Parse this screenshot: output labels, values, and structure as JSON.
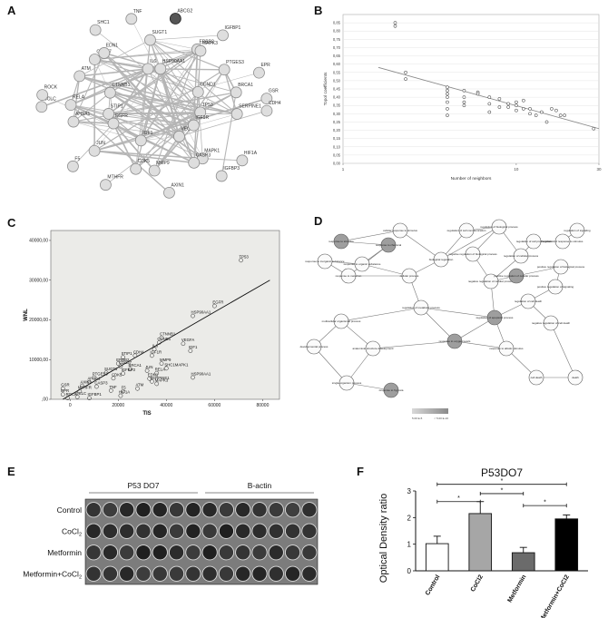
{
  "panels": {
    "a": {
      "letter": "A"
    },
    "b": {
      "letter": "B"
    },
    "c": {
      "letter": "C"
    },
    "d": {
      "letter": "D"
    },
    "e": {
      "letter": "E"
    },
    "f": {
      "letter": "F"
    }
  },
  "chart_data": [
    {
      "id": "B",
      "type": "scatter",
      "xscale": "log",
      "title": "",
      "xlabel": "Number of neighbors",
      "ylabel": "Topol coefficients",
      "xlim": [
        1,
        30
      ],
      "ylim": [
        0.0,
        0.9
      ],
      "yticks": [
        "0,00",
        "0,05",
        "0,10",
        "0,15",
        "0,20",
        "0,25",
        "0,30",
        "0,35",
        "0,40",
        "0,45",
        "0,50",
        "0,55",
        "0,60",
        "0,65",
        "0,70",
        "0,75",
        "0,80",
        "0,85"
      ],
      "ytick_values": [
        0.0,
        0.05,
        0.1,
        0.15,
        0.2,
        0.25,
        0.3,
        0.35,
        0.4,
        0.45,
        0.5,
        0.55,
        0.6,
        0.65,
        0.7,
        0.75,
        0.8,
        0.85
      ],
      "xticks": [
        "1",
        "10",
        "30"
      ],
      "xtick_values": [
        1,
        10,
        30
      ],
      "points": [
        [
          2,
          0.85
        ],
        [
          2,
          0.83
        ],
        [
          2.3,
          0.55
        ],
        [
          2.3,
          0.51
        ],
        [
          4,
          0.46
        ],
        [
          4,
          0.44
        ],
        [
          4,
          0.42
        ],
        [
          4,
          0.4
        ],
        [
          4,
          0.37
        ],
        [
          4,
          0.33
        ],
        [
          4,
          0.29
        ],
        [
          5,
          0.4
        ],
        [
          5,
          0.37
        ],
        [
          5,
          0.35
        ],
        [
          5,
          0.44
        ],
        [
          6,
          0.43
        ],
        [
          6,
          0.42
        ],
        [
          7,
          0.4
        ],
        [
          7,
          0.36
        ],
        [
          7,
          0.31
        ],
        [
          8,
          0.39
        ],
        [
          8,
          0.34
        ],
        [
          9,
          0.36
        ],
        [
          9,
          0.34
        ],
        [
          10,
          0.37
        ],
        [
          10,
          0.35
        ],
        [
          10,
          0.32
        ],
        [
          11,
          0.38
        ],
        [
          11,
          0.33
        ],
        [
          12,
          0.3
        ],
        [
          12,
          0.33
        ],
        [
          13,
          0.29
        ],
        [
          14,
          0.31
        ],
        [
          15,
          0.25
        ],
        [
          16,
          0.33
        ],
        [
          17,
          0.32
        ],
        [
          18,
          0.29
        ],
        [
          19,
          0.29
        ],
        [
          28,
          0.21
        ]
      ],
      "fit": [
        [
          1.6,
          0.58
        ],
        [
          30,
          0.21
        ]
      ]
    },
    {
      "id": "C",
      "type": "scatter",
      "title": "",
      "xlabel": "TIS",
      "ylabel": "WNL",
      "xlim": [
        -8000,
        87000
      ],
      "ylim": [
        0,
        42500
      ],
      "xticks": [
        "0",
        "20000",
        "40000",
        "60000",
        "80000"
      ],
      "xtick_values": [
        0,
        20000,
        40000,
        60000,
        80000
      ],
      "yticks": [
        ",00",
        "10000,00",
        "20000,00",
        "30000,00",
        "40000,00"
      ],
      "ytick_values": [
        0,
        10000,
        20000,
        30000,
        40000
      ],
      "points": [
        {
          "x": 71000,
          "y": 35000,
          "label": "TP53"
        },
        {
          "x": 60000,
          "y": 23500,
          "label": "EGFR"
        },
        {
          "x": 51000,
          "y": 21000,
          "label": "HSP90AA1"
        },
        {
          "x": 47000,
          "y": 14000,
          "label": "VEGFA"
        },
        {
          "x": 38000,
          "y": 15500,
          "label": "CTNNB1"
        },
        {
          "x": 37000,
          "y": 14300,
          "label": "CCND1"
        },
        {
          "x": 50000,
          "y": 12200,
          "label": "IGF1"
        },
        {
          "x": 35000,
          "y": 12600,
          "label": "IL6"
        },
        {
          "x": 27000,
          "y": 11000,
          "label": "CDH4"
        },
        {
          "x": 34000,
          "y": 11000,
          "label": "IGF1R"
        },
        {
          "x": 22000,
          "y": 10600,
          "label": "STIP1"
        },
        {
          "x": 20000,
          "y": 9000,
          "label": "ERBB2"
        },
        {
          "x": 38000,
          "y": 9000,
          "label": "MMP9"
        },
        {
          "x": 21000,
          "y": 8300,
          "label": "CDC37"
        },
        {
          "x": 25000,
          "y": 7600,
          "label": "BRCA1"
        },
        {
          "x": 32000,
          "y": 7200,
          "label": "JUN"
        },
        {
          "x": 15000,
          "y": 6700,
          "label": "SUGT1"
        },
        {
          "x": 22000,
          "y": 6500,
          "label": "IGFBP3"
        },
        {
          "x": 40000,
          "y": 7800,
          "label": "SHC1MAPK1"
        },
        {
          "x": 36000,
          "y": 6600,
          "label": "RELA"
        },
        {
          "x": 10000,
          "y": 5500,
          "label": "PTGES3"
        },
        {
          "x": 18000,
          "y": 5300,
          "label": "CDK5"
        },
        {
          "x": 33000,
          "y": 5200,
          "label": "EDN1"
        },
        {
          "x": 34000,
          "y": 4500,
          "label": "SERPINE1"
        },
        {
          "x": 8000,
          "y": 4300,
          "label": "AHSA1"
        },
        {
          "x": 36000,
          "y": 3900,
          "label": "MAPK3"
        },
        {
          "x": 5000,
          "y": 3400,
          "label": "AXIN1"
        },
        {
          "x": 11000,
          "y": 3200,
          "label": "CASP3"
        },
        {
          "x": 28000,
          "y": 2700,
          "label": "ATM"
        },
        {
          "x": -3000,
          "y": 2700,
          "label": "GSR"
        },
        {
          "x": 4000,
          "y": 2000,
          "label": "MTHFR"
        },
        {
          "x": 22000,
          "y": 2000,
          "label": "F5"
        },
        {
          "x": 17000,
          "y": 2200,
          "label": "TNF"
        },
        {
          "x": -3000,
          "y": 1200,
          "label": "EPR"
        },
        {
          "x": 21000,
          "y": 900,
          "label": "HIF1A"
        },
        {
          "x": 3000,
          "y": 600,
          "label": "GCLC"
        },
        {
          "x": 8000,
          "y": 300,
          "label": "IGFBP1"
        },
        {
          "x": -1000,
          "y": 300,
          "label": "ROCK"
        },
        {
          "x": 51000,
          "y": 5500,
          "label": "HSP90AA1"
        }
      ],
      "fit": [
        [
          -3000,
          0
        ],
        [
          83000,
          30000
        ]
      ]
    },
    {
      "id": "F",
      "type": "bar",
      "title": "P53DO7",
      "xlabel": "",
      "ylabel": "Optical Density ratio",
      "categories": [
        "Control",
        "CoCl2",
        "Metformin",
        "Metformin+CoCl2"
      ],
      "values": [
        1.02,
        2.15,
        0.68,
        1.95
      ],
      "errors": [
        0.28,
        0.45,
        0.2,
        0.15
      ],
      "colors": [
        "#ffffff",
        "#a6a6a6",
        "#6b6b6b",
        "#000000"
      ],
      "ylim": [
        0,
        3
      ],
      "yticks": [
        "0",
        "1",
        "2",
        "3"
      ],
      "ytick_values": [
        0,
        1,
        2,
        3
      ],
      "significance": [
        {
          "from": 0,
          "to": 1,
          "label": "*"
        },
        {
          "from": 1,
          "to": 2,
          "label": "*"
        },
        {
          "from": 2,
          "to": 3,
          "label": "*"
        },
        {
          "from": 0,
          "to": 3,
          "label": "*"
        }
      ]
    }
  ],
  "network_a": {
    "nodes": [
      {
        "label": "TP53",
        "dark": false
      },
      {
        "label": "EGFR",
        "dark": false
      },
      {
        "label": "HSP90AA1",
        "dark": false
      },
      {
        "label": "VEGFA",
        "dark": false
      },
      {
        "label": "CTNNB1",
        "dark": false
      },
      {
        "label": "CCND1",
        "dark": false
      },
      {
        "label": "IGF1",
        "dark": false
      },
      {
        "label": "IL6",
        "dark": false
      },
      {
        "label": "IGF1R",
        "dark": false
      },
      {
        "label": "STIP1",
        "dark": false
      },
      {
        "label": "ERBB2",
        "dark": false
      },
      {
        "label": "MMP9",
        "dark": false
      },
      {
        "label": "CDC37",
        "dark": false
      },
      {
        "label": "BRCA1",
        "dark": false
      },
      {
        "label": "JUN",
        "dark": false
      },
      {
        "label": "SUGT1",
        "dark": false
      },
      {
        "label": "MAPK1",
        "dark": false
      },
      {
        "label": "RELA",
        "dark": false
      },
      {
        "label": "PTGES3",
        "dark": false
      },
      {
        "label": "CDK5",
        "dark": false
      },
      {
        "label": "EDN1",
        "dark": false
      },
      {
        "label": "SERPINE1",
        "dark": false
      },
      {
        "label": "AHSA1",
        "dark": false
      },
      {
        "label": "MAPK3",
        "dark": false
      },
      {
        "label": "CASP3",
        "dark": false
      },
      {
        "label": "ATM",
        "dark": false
      },
      {
        "label": "GSR",
        "dark": false
      },
      {
        "label": "MTHFR",
        "dark": false
      },
      {
        "label": "TNF",
        "dark": false
      },
      {
        "label": "HIF1A",
        "dark": false
      },
      {
        "label": "GCLC",
        "dark": false
      },
      {
        "label": "IGFBP1",
        "dark": false
      },
      {
        "label": "AXIN1",
        "dark": false
      },
      {
        "label": "SHC1",
        "dark": false
      },
      {
        "label": "CDH4",
        "dark": false
      },
      {
        "label": "F5",
        "dark": false
      },
      {
        "label": "ABCG2",
        "dark": true
      },
      {
        "label": "IGFBP3",
        "dark": false
      },
      {
        "label": "ROCK",
        "dark": false
      },
      {
        "label": "EPR",
        "dark": false
      }
    ]
  },
  "network_d": {
    "nodes": [
      {
        "label": "response to stimulus",
        "shaded": true
      },
      {
        "label": "cellular response to stimulus",
        "shaded": false
      },
      {
        "label": "response to chemical",
        "shaded": true
      },
      {
        "label": "response to organic substance",
        "shaded": false
      },
      {
        "label": "response to inorganic substance",
        "shaded": false
      },
      {
        "label": "response to metal ion",
        "shaded": false
      },
      {
        "label": "regulation of biological process",
        "shaded": false
      },
      {
        "label": "regulation of cellular process",
        "shaded": false
      },
      {
        "label": "negative regulation of biological process",
        "shaded": false
      },
      {
        "label": "negative regulation of cellular process",
        "shaded": false
      },
      {
        "label": "positive regulation of cellular process",
        "shaded": true
      },
      {
        "label": "positive regulation of biological process",
        "shaded": false
      },
      {
        "label": "biological regulation",
        "shaded": false
      },
      {
        "label": "cellular process",
        "shaded": false
      },
      {
        "label": "regulation of cell proliferation",
        "shaded": false
      },
      {
        "label": "regulation of response to stimulus",
        "shaded": false
      },
      {
        "label": "regulation of signaling",
        "shaded": false
      },
      {
        "label": "regulation of cell communication",
        "shaded": false
      },
      {
        "label": "regulation of apoptotic process",
        "shaded": true
      },
      {
        "label": "regulation of cell death",
        "shaded": false
      },
      {
        "label": "negative regulation of cell death",
        "shaded": false
      },
      {
        "label": "positive regulation of signaling",
        "shaded": false
      },
      {
        "label": "regulation of metabolic process",
        "shaded": false
      },
      {
        "label": "multicellular organismal process",
        "shaded": false
      },
      {
        "label": "developmental process",
        "shaded": false
      },
      {
        "label": "anatomical structure development",
        "shaded": false
      },
      {
        "label": "single-organism process",
        "shaded": false
      },
      {
        "label": "response to hypoxia",
        "shaded": true
      },
      {
        "label": "response to oxygen levels",
        "shaded": true
      },
      {
        "label": "response to abiotic stimulus",
        "shaded": false
      },
      {
        "label": "cell death",
        "shaded": false
      },
      {
        "label": "death",
        "shaded": false
      }
    ],
    "legend": {
      "low": "5.00 E-5",
      "high": "< 5.00 E-10"
    }
  },
  "blot_e": {
    "groups": [
      "P53 DO7",
      "B-actin"
    ],
    "rows": [
      "Control",
      "CoCl",
      "Metformin",
      "Metformin+CoCl"
    ],
    "row_subscripts": [
      "",
      "2",
      "",
      "2"
    ],
    "wells_per_group": 7
  }
}
